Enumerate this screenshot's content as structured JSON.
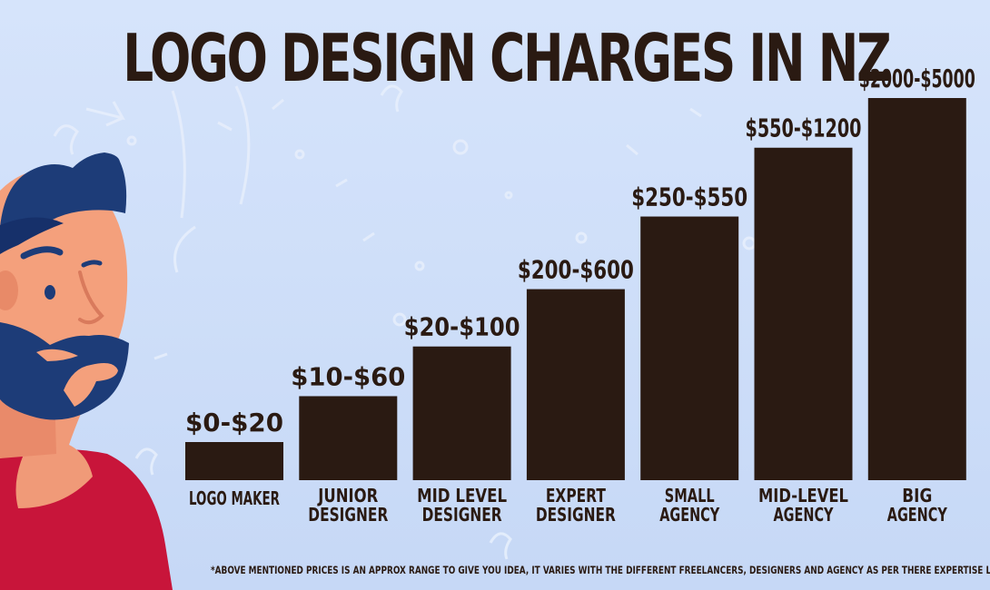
{
  "chart_data": {
    "type": "bar",
    "title": "LOGO DESIGN CHARGES IN NZ",
    "categories": [
      [
        "LOGO MAKER"
      ],
      [
        "JUNIOR",
        "DESIGNER"
      ],
      [
        "MID LEVEL",
        "DESIGNER"
      ],
      [
        "EXPERT",
        "DESIGNER"
      ],
      [
        "SMALL",
        "AGENCY"
      ],
      [
        "MID-LEVEL",
        "AGENCY"
      ],
      [
        "BIG",
        "AGENCY"
      ]
    ],
    "value_labels": [
      "$0-$20",
      "$10-$60",
      "$20-$100",
      "$200-$600",
      "$250-$550",
      "$550-$1200",
      "$2000-$5000"
    ],
    "values": [
      0.1,
      0.22,
      0.35,
      0.5,
      0.69,
      0.87,
      1.0
    ],
    "bar_color": "#2a1a12",
    "grid": false,
    "legend": "none"
  },
  "footnote": "*ABOVE MENTIONED PRICES IS AN APPROX RANGE TO GIVE YOU IDEA, IT VARIES WITH THE DIFFERENT FREELANCERS, DESIGNERS AND AGENCY AS PER THERE EXPERTISE LEVEL.",
  "colors": {
    "text": "#2a1a12",
    "background": "#d3e2fa",
    "shirt": "#c8153a",
    "hair": "#1d3c78",
    "skin": "#f29a78"
  }
}
